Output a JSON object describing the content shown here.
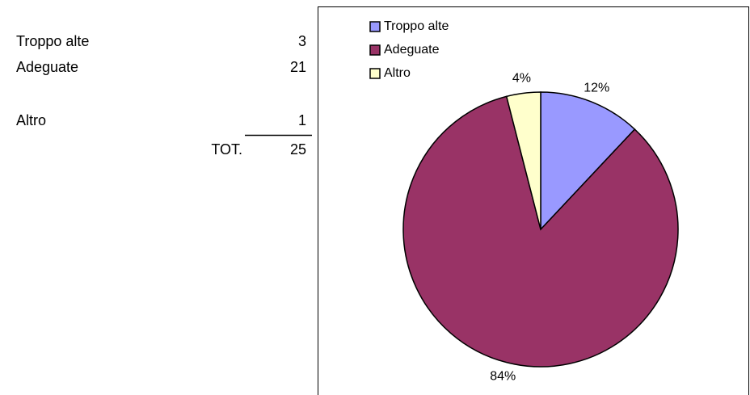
{
  "table": {
    "rows": [
      [
        "Troppo alte",
        3
      ],
      [
        "Adeguate",
        21
      ],
      [
        "Altro",
        1
      ]
    ],
    "total": {
      "label": "TOT.",
      "value": 25
    }
  },
  "chart_data": {
    "type": "pie",
    "categories": [
      "Troppo alte",
      "Adeguate",
      "Altro"
    ],
    "values": [
      12,
      84,
      4
    ],
    "value_labels": [
      "12%",
      "84%",
      "4%"
    ],
    "colors": [
      "#9999ff",
      "#993366",
      "#ffffcc"
    ],
    "legend": "top-left"
  }
}
